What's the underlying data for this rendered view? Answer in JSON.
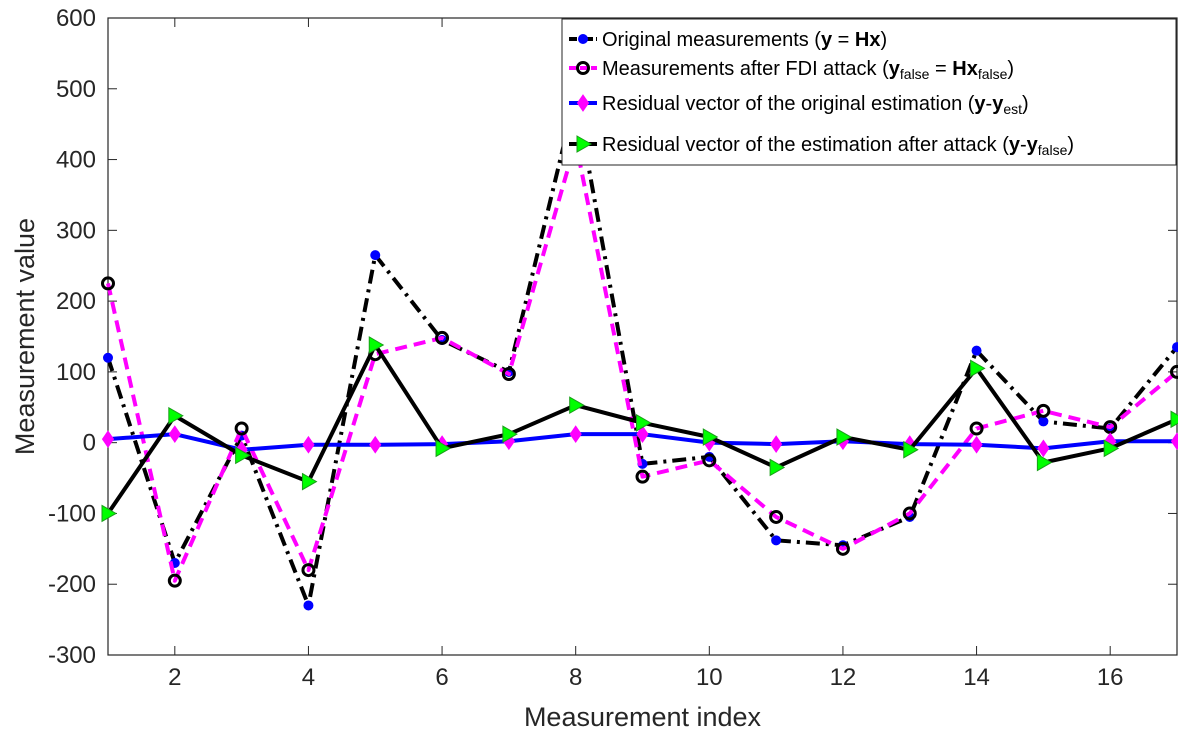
{
  "chart_data": {
    "type": "line",
    "xlabel": "Measurement index",
    "ylabel": "Measurement value",
    "xlim": [
      1,
      17
    ],
    "ylim": [
      -300,
      600
    ],
    "xticks": [
      2,
      4,
      6,
      8,
      10,
      12,
      14,
      16
    ],
    "yticks": [
      -300,
      -200,
      -100,
      0,
      100,
      200,
      300,
      400,
      500,
      600
    ],
    "grid": false,
    "legend_position": "top-right",
    "x": [
      1,
      2,
      3,
      4,
      5,
      6,
      7,
      8,
      9,
      10,
      11,
      12,
      13,
      14,
      15,
      16,
      17
    ],
    "series": [
      {
        "name": "Original measurements (y = Hx)",
        "legend_parts": [
          {
            "t": "Original measurements ("
          },
          {
            "t": "y",
            "b": true
          },
          {
            "t": " = "
          },
          {
            "t": "Hx",
            "b": true
          },
          {
            "t": ")"
          }
        ],
        "color": "#000000",
        "marker_color": "#0000ff",
        "marker": "dot",
        "line": "dashdot",
        "values": [
          120,
          -170,
          10,
          -230,
          265,
          145,
          100,
          490,
          -30,
          -20,
          -138,
          -145,
          -105,
          130,
          30,
          20,
          135
        ]
      },
      {
        "name": "Measurements after FDI attack (yfalse = Hxfalse)",
        "legend_parts": [
          {
            "t": "Measurements after FDI attack ("
          },
          {
            "t": "y",
            "b": true
          },
          {
            "t": "false",
            "sub": true
          },
          {
            "t": " = "
          },
          {
            "t": "Hx",
            "b": true
          },
          {
            "t": "false",
            "sub": true
          },
          {
            "t": ")"
          }
        ],
        "color": "#ff00ff",
        "marker_color": "#000000",
        "marker": "circle",
        "line": "dashed",
        "values": [
          225,
          -195,
          20,
          -180,
          125,
          148,
          97,
          425,
          -48,
          -25,
          -105,
          -150,
          -100,
          20,
          45,
          22,
          100
        ]
      },
      {
        "name": "Residual vector of the original estimation (y-yest)",
        "legend_parts": [
          {
            "t": "Residual vector of the original estimation ("
          },
          {
            "t": "y",
            "b": true
          },
          {
            "t": "-"
          },
          {
            "t": "y",
            "b": true
          },
          {
            "t": "est",
            "sub": true
          },
          {
            "t": ")"
          }
        ],
        "color": "#0000ff",
        "marker_color": "#ff00ff",
        "marker": "diamond",
        "line": "solid",
        "values": [
          5,
          12,
          -10,
          -3,
          -3,
          -2,
          2,
          12,
          12,
          0,
          -2,
          2,
          -2,
          -3,
          -8,
          2,
          2
        ]
      },
      {
        "name": "Residual vector of the estimation after attack (y-yfalse)",
        "legend_parts": [
          {
            "t": "Residual vector of the estimation after attack ("
          },
          {
            "t": "y",
            "b": true
          },
          {
            "t": "-"
          },
          {
            "t": "y",
            "b": true
          },
          {
            "t": "false",
            "sub": true
          },
          {
            "t": ")"
          }
        ],
        "color": "#000000",
        "marker_color": "#00ff00",
        "marker": "triangle-right",
        "line": "solid",
        "values": [
          -100,
          38,
          -18,
          -55,
          138,
          -8,
          12,
          53,
          28,
          8,
          -35,
          8,
          -10,
          105,
          -28,
          -8,
          33
        ]
      }
    ]
  }
}
